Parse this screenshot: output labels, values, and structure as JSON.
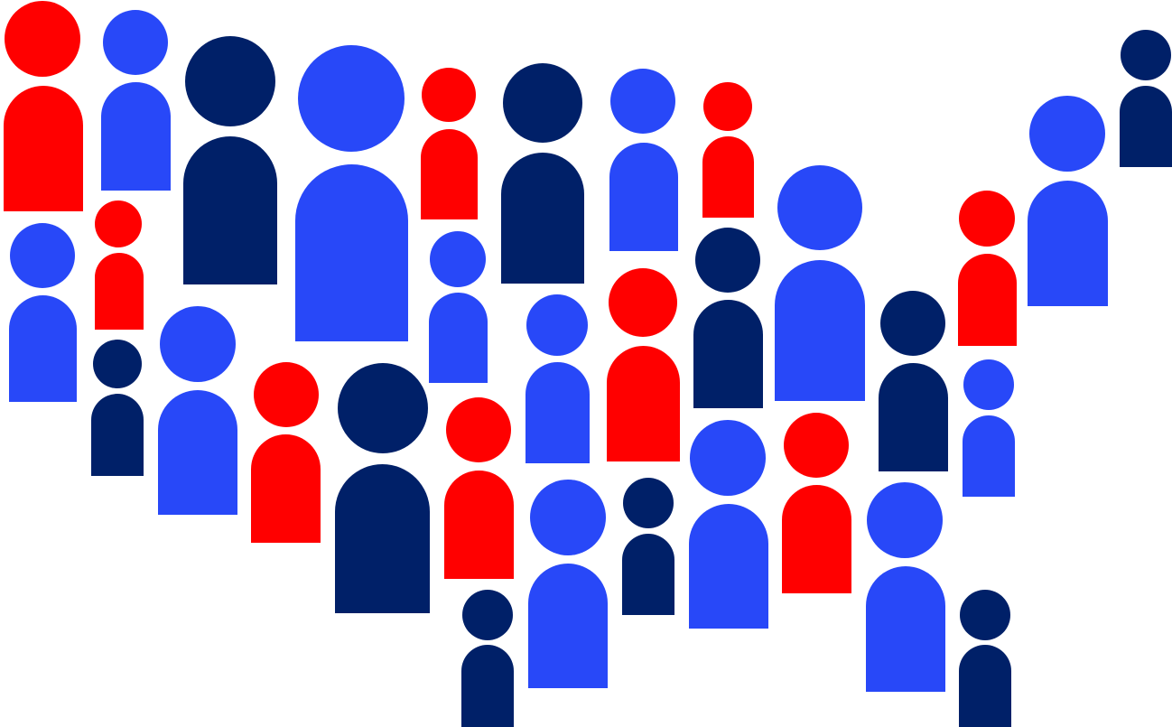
{
  "illustration": {
    "subject": "people-figures-forming-us-map",
    "palette": {
      "red": "#ff0000",
      "blue": "#2848f8",
      "navy": "#002068"
    },
    "figures": [
      "red",
      "blue",
      "navy",
      "blue",
      "red",
      "navy",
      "blue",
      "red",
      "blue",
      "navy",
      "blue",
      "red",
      "blue",
      "red",
      "navy",
      "blue",
      "red",
      "navy",
      "red",
      "blue",
      "blue",
      "red",
      "navy",
      "navy",
      "blue",
      "red",
      "blue",
      "navy",
      "blue",
      "navy",
      "blue",
      "navy"
    ]
  }
}
